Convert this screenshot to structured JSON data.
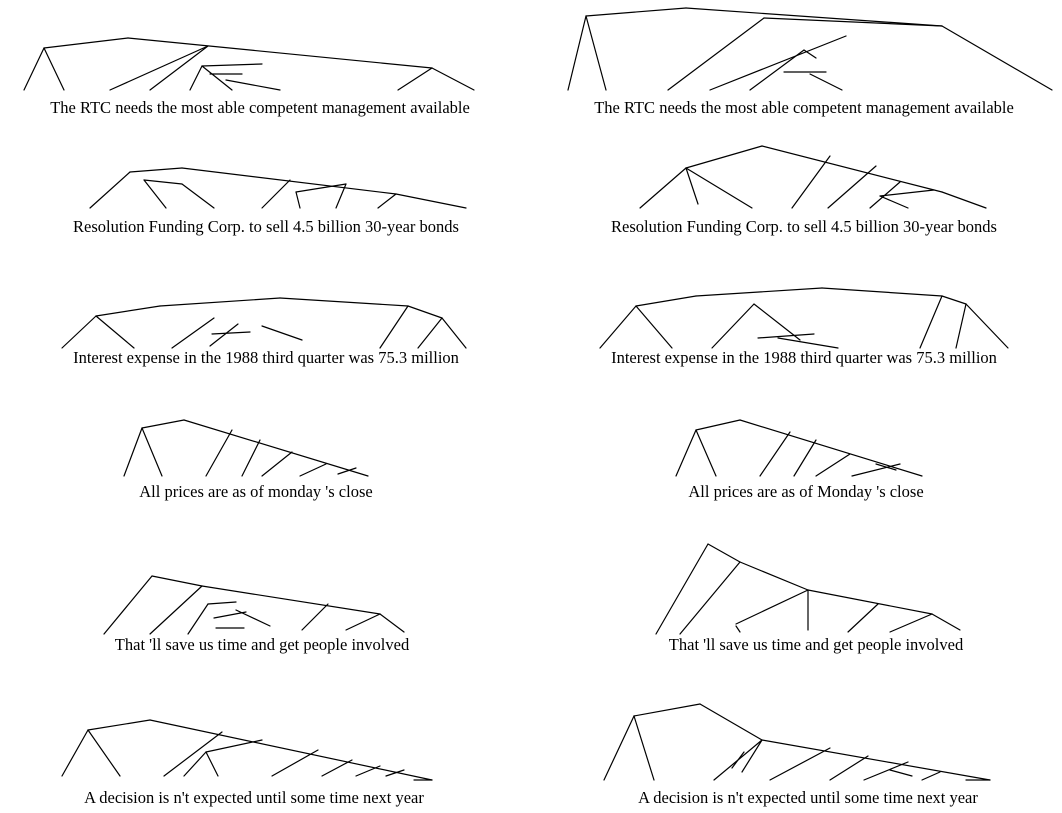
{
  "figure": {
    "columns": [
      "left",
      "right"
    ],
    "rows": [
      {
        "left": {
          "sentence": "The RTC needs the most able competent management available"
        },
        "right": {
          "sentence": "The RTC needs the most able competent management available"
        }
      },
      {
        "left": {
          "sentence": "Resolution Funding Corp. to sell 4.5 billion 30-year bonds"
        },
        "right": {
          "sentence": "Resolution Funding Corp. to sell 4.5 billion 30-year bonds"
        }
      },
      {
        "left": {
          "sentence": "Interest expense in the 1988 third quarter was 75.3 million"
        },
        "right": {
          "sentence": "Interest expense in the 1988 third quarter was 75.3 million"
        }
      },
      {
        "left": {
          "sentence": "All prices are as of monday 's close"
        },
        "right": {
          "sentence": "All prices are as of Monday 's close"
        }
      },
      {
        "left": {
          "sentence": "That 'll save us time and get people involved"
        },
        "right": {
          "sentence": "That 'll save us time and get people involved"
        }
      },
      {
        "left": {
          "sentence": "A decision is n't expected until some time next year"
        },
        "right": {
          "sentence": "A decision is n't expected until some time next year"
        }
      }
    ]
  }
}
